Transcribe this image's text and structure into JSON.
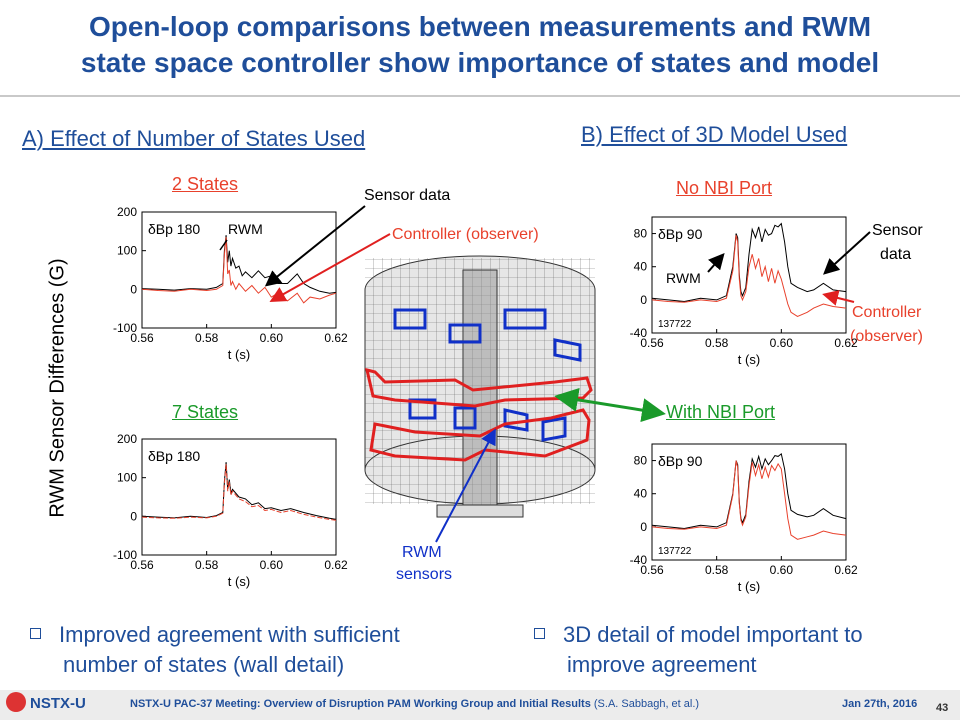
{
  "title": {
    "line1": "Open-loop comparisons between measurements and RWM",
    "line2": "state space controller show importance of states and model"
  },
  "section_a": "A) Effect of Number of States Used",
  "section_b": "B) Effect of 3D Model Used",
  "shared_ylabel": "RWM Sensor Differences (G)",
  "annotations": {
    "sensor_data_a": "Sensor data",
    "controller_a": "Controller (observer)",
    "sensor_data_b_1": "Sensor",
    "sensor_data_b_2": "data",
    "controller_b_1": "Controller",
    "controller_b_2": "(observer)",
    "rwm_sensors_1": "RWM",
    "rwm_sensors_2": "sensors"
  },
  "colors": {
    "title": "#1f4e9a",
    "sensor": "#000000",
    "controller": "#e8412c",
    "green": "#1a9a2a",
    "blue": "#1030c8"
  },
  "bullets": {
    "left_1": "Improved agreement with sufficient",
    "left_2": "number of states (wall detail)",
    "right_1": "3D detail of model important to",
    "right_2": "improve agreement"
  },
  "footer": {
    "logo": "NSTX-U",
    "meeting": "NSTX-U PAC-37 Meeting: Overview of Disruption PAM Working Group and Initial Results",
    "authors": "(S.A. Sabbagh, et al.)",
    "date": "Jan 27th, 2016",
    "page": "43"
  },
  "chart_data": [
    {
      "type": "line",
      "title": "2 States",
      "title_color": "#e8412c",
      "label": "δBp 180",
      "inset": "RWM",
      "xlabel": "t (s)",
      "xlim": [
        0.56,
        0.62
      ],
      "ylim": [
        -100,
        200
      ],
      "xticks": [
        "0.56",
        "0.58",
        "0.60",
        "0.62"
      ],
      "yticks": [
        "200",
        "100",
        "0",
        "-100"
      ],
      "series": [
        {
          "color": "#000000",
          "points": [
            [
              0.56,
              2
            ],
            [
              0.565,
              0
            ],
            [
              0.57,
              -2
            ],
            [
              0.575,
              2
            ],
            [
              0.58,
              0
            ],
            [
              0.583,
              5
            ],
            [
              0.585,
              15
            ],
            [
              0.5855,
              100
            ],
            [
              0.586,
              140
            ],
            [
              0.5865,
              70
            ],
            [
              0.587,
              100
            ],
            [
              0.5875,
              60
            ],
            [
              0.588,
              80
            ],
            [
              0.589,
              55
            ],
            [
              0.59,
              60
            ],
            [
              0.591,
              35
            ],
            [
              0.592,
              45
            ],
            [
              0.594,
              30
            ],
            [
              0.596,
              48
            ],
            [
              0.598,
              30
            ],
            [
              0.6,
              35
            ],
            [
              0.602,
              15
            ],
            [
              0.605,
              15
            ],
            [
              0.608,
              40
            ],
            [
              0.61,
              15
            ],
            [
              0.612,
              5
            ],
            [
              0.615,
              -5
            ],
            [
              0.618,
              -10
            ],
            [
              0.62,
              -8
            ]
          ]
        },
        {
          "color": "#e8412c",
          "points": [
            [
              0.56,
              0
            ],
            [
              0.565,
              -3
            ],
            [
              0.57,
              -5
            ],
            [
              0.575,
              0
            ],
            [
              0.58,
              -3
            ],
            [
              0.583,
              0
            ],
            [
              0.585,
              10
            ],
            [
              0.5855,
              90
            ],
            [
              0.586,
              135
            ],
            [
              0.5865,
              40
            ],
            [
              0.587,
              50
            ],
            [
              0.5875,
              10
            ],
            [
              0.588,
              20
            ],
            [
              0.589,
              0
            ],
            [
              0.59,
              15
            ],
            [
              0.592,
              -5
            ],
            [
              0.594,
              10
            ],
            [
              0.596,
              -10
            ],
            [
              0.598,
              5
            ],
            [
              0.6,
              -20
            ],
            [
              0.602,
              -10
            ],
            [
              0.605,
              -30
            ],
            [
              0.608,
              -10
            ],
            [
              0.61,
              -35
            ],
            [
              0.612,
              -20
            ],
            [
              0.615,
              -25
            ],
            [
              0.618,
              -15
            ],
            [
              0.62,
              -10
            ]
          ]
        }
      ]
    },
    {
      "type": "line",
      "title": "7 States",
      "title_color": "#1a9a2a",
      "label": "δBp 180",
      "xlabel": "t (s)",
      "xlim": [
        0.56,
        0.62
      ],
      "ylim": [
        -100,
        200
      ],
      "xticks": [
        "0.56",
        "0.58",
        "0.60",
        "0.62"
      ],
      "yticks": [
        "200",
        "100",
        "0",
        "-100"
      ],
      "series": [
        {
          "color": "#000000",
          "points": [
            [
              0.56,
              0
            ],
            [
              0.565,
              -2
            ],
            [
              0.57,
              -4
            ],
            [
              0.575,
              0
            ],
            [
              0.58,
              -3
            ],
            [
              0.583,
              2
            ],
            [
              0.585,
              10
            ],
            [
              0.5855,
              90
            ],
            [
              0.586,
              140
            ],
            [
              0.5865,
              70
            ],
            [
              0.587,
              95
            ],
            [
              0.5875,
              60
            ],
            [
              0.588,
              70
            ],
            [
              0.59,
              50
            ],
            [
              0.592,
              45
            ],
            [
              0.594,
              30
            ],
            [
              0.596,
              35
            ],
            [
              0.598,
              20
            ],
            [
              0.6,
              22
            ],
            [
              0.603,
              15
            ],
            [
              0.606,
              20
            ],
            [
              0.61,
              10
            ],
            [
              0.614,
              2
            ],
            [
              0.618,
              -5
            ],
            [
              0.62,
              -8
            ]
          ]
        },
        {
          "color": "#e8412c",
          "points": [
            [
              0.56,
              -2
            ],
            [
              0.565,
              -4
            ],
            [
              0.57,
              -5
            ],
            [
              0.575,
              -2
            ],
            [
              0.58,
              -4
            ],
            [
              0.583,
              0
            ],
            [
              0.585,
              8
            ],
            [
              0.5855,
              85
            ],
            [
              0.586,
              135
            ],
            [
              0.5865,
              65
            ],
            [
              0.587,
              90
            ],
            [
              0.5875,
              55
            ],
            [
              0.588,
              65
            ],
            [
              0.59,
              45
            ],
            [
              0.592,
              38
            ],
            [
              0.594,
              25
            ],
            [
              0.596,
              28
            ],
            [
              0.598,
              15
            ],
            [
              0.6,
              18
            ],
            [
              0.603,
              10
            ],
            [
              0.606,
              15
            ],
            [
              0.61,
              5
            ],
            [
              0.614,
              -2
            ],
            [
              0.618,
              -8
            ],
            [
              0.62,
              -10
            ]
          ]
        }
      ]
    },
    {
      "type": "line",
      "title": "No NBI Port",
      "title_color": "#e8412c",
      "label": "δBp 90",
      "inset": "RWM",
      "shot": "137722",
      "xlabel": "t (s)",
      "xlim": [
        0.56,
        0.62
      ],
      "ylim": [
        -40,
        100
      ],
      "xticks": [
        "0.56",
        "0.58",
        "0.60",
        "0.62"
      ],
      "yticks": [
        "80",
        "40",
        "0",
        "-40"
      ],
      "series": [
        {
          "color": "#000000",
          "points": [
            [
              0.56,
              2
            ],
            [
              0.565,
              0
            ],
            [
              0.57,
              -2
            ],
            [
              0.575,
              2
            ],
            [
              0.58,
              0
            ],
            [
              0.583,
              5
            ],
            [
              0.585,
              40
            ],
            [
              0.586,
              80
            ],
            [
              0.5865,
              75
            ],
            [
              0.587,
              30
            ],
            [
              0.5875,
              10
            ],
            [
              0.588,
              5
            ],
            [
              0.589,
              15
            ],
            [
              0.59,
              55
            ],
            [
              0.591,
              85
            ],
            [
              0.592,
              75
            ],
            [
              0.593,
              88
            ],
            [
              0.594,
              70
            ],
            [
              0.595,
              85
            ],
            [
              0.596,
              78
            ],
            [
              0.597,
              80
            ],
            [
              0.598,
              90
            ],
            [
              0.599,
              88
            ],
            [
              0.6,
              92
            ],
            [
              0.601,
              70
            ],
            [
              0.602,
              40
            ],
            [
              0.603,
              20
            ],
            [
              0.605,
              15
            ],
            [
              0.608,
              10
            ],
            [
              0.61,
              12
            ],
            [
              0.613,
              20
            ],
            [
              0.616,
              12
            ],
            [
              0.62,
              10
            ]
          ]
        },
        {
          "color": "#e8412c",
          "points": [
            [
              0.56,
              0
            ],
            [
              0.565,
              -2
            ],
            [
              0.57,
              -3
            ],
            [
              0.575,
              0
            ],
            [
              0.58,
              -2
            ],
            [
              0.583,
              2
            ],
            [
              0.585,
              35
            ],
            [
              0.586,
              78
            ],
            [
              0.5865,
              70
            ],
            [
              0.587,
              25
            ],
            [
              0.5875,
              5
            ],
            [
              0.588,
              0
            ],
            [
              0.589,
              10
            ],
            [
              0.59,
              40
            ],
            [
              0.591,
              55
            ],
            [
              0.592,
              38
            ],
            [
              0.593,
              50
            ],
            [
              0.594,
              28
            ],
            [
              0.595,
              40
            ],
            [
              0.596,
              22
            ],
            [
              0.597,
              38
            ],
            [
              0.598,
              20
            ],
            [
              0.599,
              35
            ],
            [
              0.6,
              25
            ],
            [
              0.601,
              10
            ],
            [
              0.602,
              -5
            ],
            [
              0.603,
              -15
            ],
            [
              0.605,
              -20
            ],
            [
              0.608,
              -15
            ],
            [
              0.61,
              -10
            ],
            [
              0.613,
              -5
            ],
            [
              0.616,
              -8
            ],
            [
              0.62,
              -10
            ]
          ]
        }
      ]
    },
    {
      "type": "line",
      "title": "With NBI Port",
      "title_color": "#1a9a2a",
      "label": "δBp 90",
      "shot": "137722",
      "xlabel": "t (s)",
      "xlim": [
        0.56,
        0.62
      ],
      "ylim": [
        -40,
        100
      ],
      "xticks": [
        "0.56",
        "0.58",
        "0.60",
        "0.62"
      ],
      "yticks": [
        "80",
        "40",
        "0",
        "-40"
      ],
      "series": [
        {
          "color": "#000000",
          "points": [
            [
              0.56,
              2
            ],
            [
              0.565,
              0
            ],
            [
              0.57,
              -2
            ],
            [
              0.575,
              2
            ],
            [
              0.58,
              0
            ],
            [
              0.583,
              5
            ],
            [
              0.585,
              40
            ],
            [
              0.586,
              80
            ],
            [
              0.5865,
              75
            ],
            [
              0.587,
              30
            ],
            [
              0.5875,
              10
            ],
            [
              0.588,
              5
            ],
            [
              0.589,
              15
            ],
            [
              0.59,
              55
            ],
            [
              0.591,
              82
            ],
            [
              0.592,
              72
            ],
            [
              0.593,
              85
            ],
            [
              0.594,
              70
            ],
            [
              0.595,
              82
            ],
            [
              0.596,
              75
            ],
            [
              0.597,
              80
            ],
            [
              0.598,
              86
            ],
            [
              0.599,
              85
            ],
            [
              0.6,
              88
            ],
            [
              0.601,
              70
            ],
            [
              0.602,
              40
            ],
            [
              0.603,
              20
            ],
            [
              0.605,
              15
            ],
            [
              0.608,
              12
            ],
            [
              0.61,
              14
            ],
            [
              0.613,
              22
            ],
            [
              0.616,
              14
            ],
            [
              0.62,
              10
            ]
          ]
        },
        {
          "color": "#e8412c",
          "points": [
            [
              0.56,
              0
            ],
            [
              0.565,
              -2
            ],
            [
              0.57,
              -3
            ],
            [
              0.575,
              0
            ],
            [
              0.58,
              -2
            ],
            [
              0.583,
              2
            ],
            [
              0.585,
              38
            ],
            [
              0.586,
              80
            ],
            [
              0.5865,
              72
            ],
            [
              0.587,
              28
            ],
            [
              0.5875,
              8
            ],
            [
              0.588,
              2
            ],
            [
              0.589,
              12
            ],
            [
              0.59,
              50
            ],
            [
              0.591,
              78
            ],
            [
              0.592,
              62
            ],
            [
              0.593,
              75
            ],
            [
              0.594,
              58
            ],
            [
              0.595,
              72
            ],
            [
              0.596,
              60
            ],
            [
              0.597,
              74
            ],
            [
              0.598,
              68
            ],
            [
              0.599,
              76
            ],
            [
              0.6,
              70
            ],
            [
              0.601,
              40
            ],
            [
              0.602,
              10
            ],
            [
              0.603,
              -10
            ],
            [
              0.605,
              -15
            ],
            [
              0.608,
              -12
            ],
            [
              0.61,
              -10
            ],
            [
              0.613,
              -5
            ],
            [
              0.616,
              -8
            ],
            [
              0.62,
              -10
            ]
          ]
        }
      ]
    }
  ]
}
